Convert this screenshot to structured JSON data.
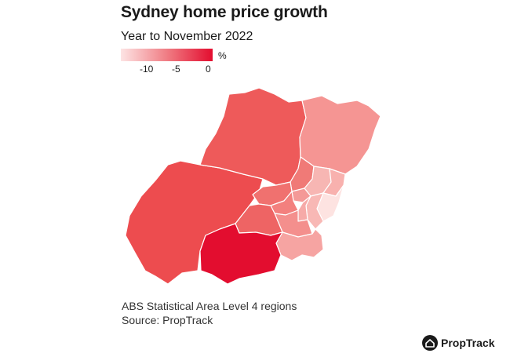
{
  "header": {
    "title": "Sydney home price growth",
    "subtitle": "Year to November 2022"
  },
  "legend": {
    "unit": "%",
    "ticks": [
      "-10",
      "-5",
      "0"
    ],
    "scale_min": -13,
    "scale_max": 0,
    "colors": {
      "low": "#fde4e4",
      "mid": "#f07d84",
      "high": "#e30d2f"
    }
  },
  "map": {
    "region_level": "ABS Statistical Area Level 4 regions",
    "border_color": "#ffffff",
    "regions": [
      {
        "id": "outer-south-west",
        "growth_pct": -3.8,
        "color": "#ed4c4f"
      },
      {
        "id": "outer-west-blue-mountains",
        "growth_pct": -4.8,
        "color": "#ee5a5a"
      },
      {
        "id": "central-coast",
        "growth_pct": -9.0,
        "color": "#f59593"
      },
      {
        "id": "baulkham-hills-hawkesbury",
        "growth_pct": -7.0,
        "color": "#f07a77"
      },
      {
        "id": "blacktown",
        "growth_pct": -6.5,
        "color": "#f0716f"
      },
      {
        "id": "parramatta",
        "growth_pct": -7.5,
        "color": "#f3807e"
      },
      {
        "id": "ryde",
        "growth_pct": -9.0,
        "color": "#f49997"
      },
      {
        "id": "northern-beaches",
        "growth_pct": -10.5,
        "color": "#f8b1ae"
      },
      {
        "id": "north-sydney-hornsby",
        "growth_pct": -10.5,
        "color": "#f7b6b3"
      },
      {
        "id": "eastern-suburbs",
        "growth_pct": -12.5,
        "color": "#fde3e1"
      },
      {
        "id": "city-inner-south",
        "growth_pct": -10.5,
        "color": "#f8b8b5"
      },
      {
        "id": "inner-west",
        "growth_pct": -10.0,
        "color": "#f6aaa8"
      },
      {
        "id": "inner-south-west",
        "growth_pct": -8.0,
        "color": "#f48f8d"
      },
      {
        "id": "south-west",
        "growth_pct": -6.0,
        "color": "#ee6464"
      },
      {
        "id": "sutherland",
        "growth_pct": -10.0,
        "color": "#f6a4a2"
      },
      {
        "id": "outer-south-west-campbelltown",
        "growth_pct": 0.0,
        "color": "#e30d2f"
      }
    ]
  },
  "footer": {
    "note_line1": "ABS Statistical Area Level 4 regions",
    "note_line2": "Source: PropTrack"
  },
  "brand": {
    "name": "PropTrack",
    "logo_icon": "house-icon"
  }
}
